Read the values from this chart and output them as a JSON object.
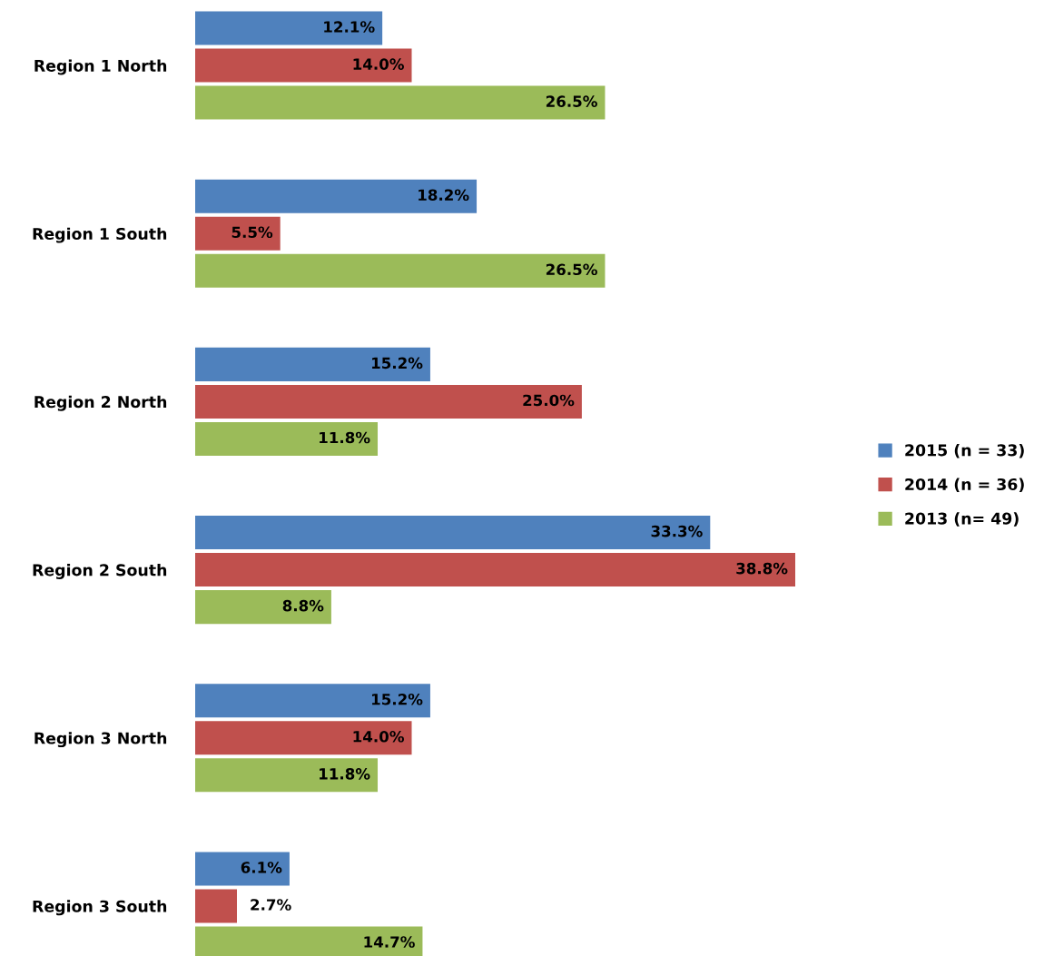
{
  "chart_data": {
    "type": "bar",
    "orientation": "horizontal",
    "legend": "right",
    "grid": false,
    "categories": [
      "Region 1 North",
      "Region 1 South",
      "Region 2 North",
      "Region 2 South",
      "Region 3 North",
      "Region 3 South"
    ],
    "series": [
      {
        "name": "2015 (n = 33)",
        "color": "#4f81bd",
        "values": [
          12.1,
          18.2,
          15.2,
          33.3,
          15.2,
          6.1
        ],
        "value_labels": [
          "12.1%",
          "18.2%",
          "15.2%",
          "33.3%",
          "15.2%",
          "6.1%"
        ]
      },
      {
        "name": "2014 (n = 36)",
        "color": "#c0504d",
        "values": [
          14.0,
          5.5,
          25.0,
          38.8,
          14.0,
          2.7
        ],
        "value_labels": [
          "14.0%",
          "5.5%",
          "25.0%",
          "38.8%",
          "14.0%",
          "2.7%"
        ]
      },
      {
        "name": "2013 (n= 49)",
        "color": "#9bbb59",
        "values": [
          26.5,
          26.5,
          11.8,
          8.8,
          11.8,
          14.7
        ],
        "value_labels": [
          "26.5%",
          "26.5%",
          "11.8%",
          "8.8%",
          "11.8%",
          "14.7%"
        ]
      }
    ]
  }
}
